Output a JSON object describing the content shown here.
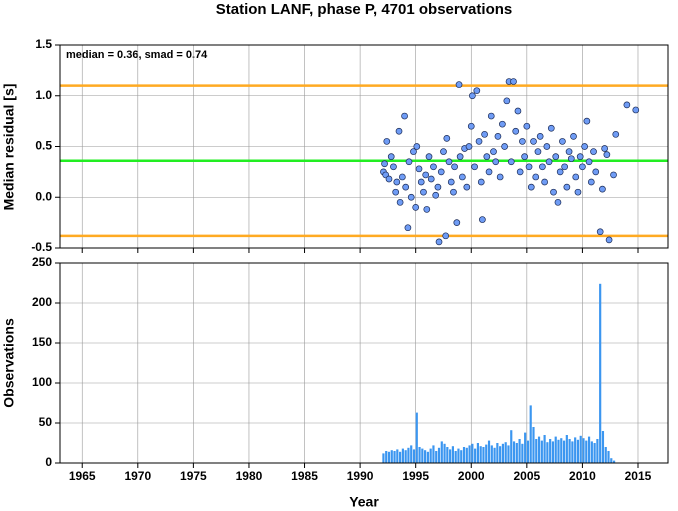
{
  "chart_data": [
    {
      "type": "scatter",
      "title": "Station LANF, phase P, 4701 observations",
      "ylabel": "Median residual [s]",
      "annotation": "median = 0.36, smad = 0.74",
      "xlim": [
        1963,
        2017.7
      ],
      "xticks": [
        1965,
        1970,
        1975,
        1980,
        1985,
        1990,
        1995,
        2000,
        2005,
        2010,
        2015
      ],
      "ylim": [
        -0.5,
        1.5
      ],
      "yticks": [
        1.5,
        {
          "value": 1.0,
          "label": "1.0"
        },
        0.5,
        {
          "value": 0.0,
          "label": "0.0"
        },
        -0.5
      ],
      "grid": true,
      "hlines": [
        {
          "value": 1.1,
          "color": "#ffaa22"
        },
        {
          "value": -0.38,
          "color": "#ffaa22"
        },
        {
          "value": 0.36,
          "color": "#22ee22"
        }
      ],
      "series": [
        {
          "color": "#6f9cf5",
          "x": [
            1992.1,
            1992.2,
            1992.3,
            1992.4,
            1992.6,
            1992.8,
            1993.0,
            1993.2,
            1993.3,
            1993.5,
            1993.6,
            1993.8,
            1994.0,
            1994.1,
            1994.3,
            1994.4,
            1994.6,
            1994.8,
            1995.0,
            1995.1,
            1995.3,
            1995.5,
            1995.7,
            1995.9,
            1996.0,
            1996.2,
            1996.4,
            1996.6,
            1996.8,
            1997.0,
            1997.1,
            1997.3,
            1997.5,
            1997.7,
            1997.8,
            1998.0,
            1998.2,
            1998.4,
            1998.5,
            1998.7,
            1998.9,
            1999.0,
            1999.2,
            1999.4,
            1999.6,
            1999.8,
            2000.0,
            2000.1,
            2000.3,
            2000.5,
            2000.7,
            2000.9,
            2001.0,
            2001.2,
            2001.4,
            2001.6,
            2001.8,
            2002.0,
            2002.2,
            2002.4,
            2002.6,
            2002.8,
            2003.0,
            2003.2,
            2003.4,
            2003.6,
            2003.8,
            2004.0,
            2004.2,
            2004.4,
            2004.6,
            2004.8,
            2005.0,
            2005.2,
            2005.4,
            2005.6,
            2005.8,
            2006.0,
            2006.2,
            2006.4,
            2006.6,
            2006.8,
            2007.0,
            2007.2,
            2007.4,
            2007.6,
            2007.8,
            2008.0,
            2008.2,
            2008.4,
            2008.6,
            2008.8,
            2009.0,
            2009.2,
            2009.4,
            2009.6,
            2009.8,
            2010.0,
            2010.2,
            2010.4,
            2010.6,
            2010.8,
            2011.0,
            2011.2,
            2011.6,
            2011.8,
            2012.0,
            2012.2,
            2012.4,
            2012.8,
            2013.0,
            2014.0,
            2014.8
          ],
          "values": [
            0.25,
            0.33,
            0.22,
            0.55,
            0.18,
            0.4,
            0.3,
            0.05,
            0.15,
            0.65,
            -0.05,
            0.2,
            0.8,
            0.1,
            -0.3,
            0.35,
            0.0,
            0.45,
            -0.1,
            0.5,
            0.28,
            0.15,
            0.05,
            0.22,
            -0.12,
            0.4,
            0.18,
            0.3,
            0.02,
            0.1,
            -0.44,
            0.25,
            0.45,
            -0.38,
            0.58,
            0.35,
            0.15,
            0.05,
            0.3,
            -0.25,
            1.11,
            0.4,
            0.2,
            0.48,
            0.1,
            0.5,
            0.7,
            1.0,
            0.3,
            1.05,
            0.55,
            0.15,
            -0.22,
            0.62,
            0.4,
            0.25,
            0.8,
            0.45,
            0.35,
            0.6,
            0.2,
            0.72,
            0.5,
            0.95,
            1.14,
            0.35,
            1.14,
            0.65,
            0.85,
            0.25,
            0.55,
            0.4,
            0.7,
            0.3,
            0.1,
            0.55,
            0.2,
            0.45,
            0.6,
            0.3,
            0.15,
            0.5,
            0.35,
            0.68,
            0.05,
            0.4,
            -0.05,
            0.25,
            0.55,
            0.3,
            0.1,
            0.45,
            0.38,
            0.6,
            0.2,
            0.05,
            0.4,
            0.3,
            0.5,
            0.75,
            0.35,
            0.15,
            0.45,
            0.25,
            -0.34,
            0.08,
            0.48,
            0.42,
            -0.42,
            0.22,
            0.62,
            0.91,
            0.86
          ]
        }
      ]
    },
    {
      "type": "histogram",
      "xlabel": "Year",
      "ylabel": "Observations",
      "color": "#3b96f0",
      "xlim": [
        1963,
        2017.7
      ],
      "xticks": [
        1965,
        1970,
        1975,
        1980,
        1985,
        1990,
        1995,
        2000,
        2005,
        2010,
        2015
      ],
      "ylim": [
        0,
        250
      ],
      "yticks": [
        0,
        50,
        100,
        150,
        200,
        250
      ],
      "grid": true,
      "bins": [
        1992,
        1992.25,
        1992.5,
        1992.75,
        1993,
        1993.25,
        1993.5,
        1993.75,
        1994,
        1994.25,
        1994.5,
        1994.75,
        1995,
        1995.25,
        1995.5,
        1995.75,
        1996,
        1996.25,
        1996.5,
        1996.75,
        1997,
        1997.25,
        1997.5,
        1997.75,
        1998,
        1998.25,
        1998.5,
        1998.75,
        1999,
        1999.25,
        1999.5,
        1999.75,
        2000,
        2000.25,
        2000.5,
        2000.75,
        2001,
        2001.25,
        2001.5,
        2001.75,
        2002,
        2002.25,
        2002.5,
        2002.75,
        2003,
        2003.25,
        2003.5,
        2003.75,
        2004,
        2004.25,
        2004.5,
        2004.75,
        2005,
        2005.25,
        2005.5,
        2005.75,
        2006,
        2006.25,
        2006.5,
        2006.75,
        2007,
        2007.25,
        2007.5,
        2007.75,
        2008,
        2008.25,
        2008.5,
        2008.75,
        2009,
        2009.25,
        2009.5,
        2009.75,
        2010,
        2010.25,
        2010.5,
        2010.75,
        2011,
        2011.25,
        2011.5,
        2011.75,
        2012,
        2012.25,
        2012.5,
        2012.75,
        2013
      ],
      "values": [
        12,
        15,
        14,
        16,
        15,
        17,
        14,
        18,
        16,
        19,
        22,
        17,
        63,
        20,
        18,
        16,
        14,
        18,
        22,
        15,
        19,
        27,
        24,
        20,
        17,
        21,
        15,
        18,
        16,
        20,
        19,
        22,
        24,
        18,
        25,
        21,
        20,
        23,
        28,
        22,
        19,
        25,
        21,
        24,
        26,
        22,
        41,
        27,
        25,
        30,
        24,
        38,
        28,
        72,
        45,
        30,
        33,
        28,
        35,
        26,
        30,
        27,
        33,
        29,
        31,
        28,
        35,
        30,
        27,
        32,
        29,
        34,
        31,
        28,
        33,
        27,
        25,
        30,
        224,
        40,
        20,
        15,
        6,
        3
      ]
    }
  ]
}
